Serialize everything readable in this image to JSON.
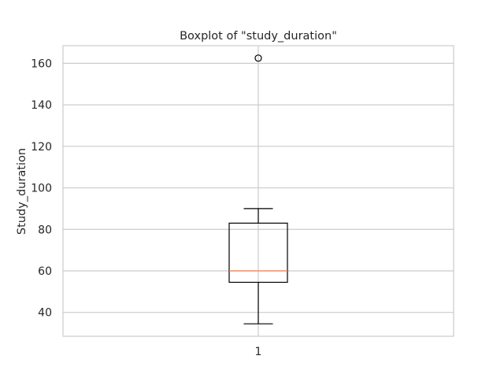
{
  "chart_data": {
    "type": "boxplot",
    "title": "Boxplot of \"study_duration\"",
    "xlabel": "",
    "ylabel": "Study_duration",
    "categories": [
      "1"
    ],
    "y_ticks": [
      40,
      60,
      80,
      100,
      120,
      140,
      160
    ],
    "ylim": [
      28.5,
      168.5
    ],
    "grid": true,
    "boxes": [
      {
        "category": "1",
        "whisker_low": 34.5,
        "q1": 54.5,
        "median": 60,
        "q3": 83,
        "whisker_high": 90,
        "outliers": [
          162.5
        ]
      }
    ],
    "colors": {
      "box": "#000000",
      "median": "#ef8a62",
      "grid": "#cccccc",
      "frame": "#cccccc"
    }
  }
}
